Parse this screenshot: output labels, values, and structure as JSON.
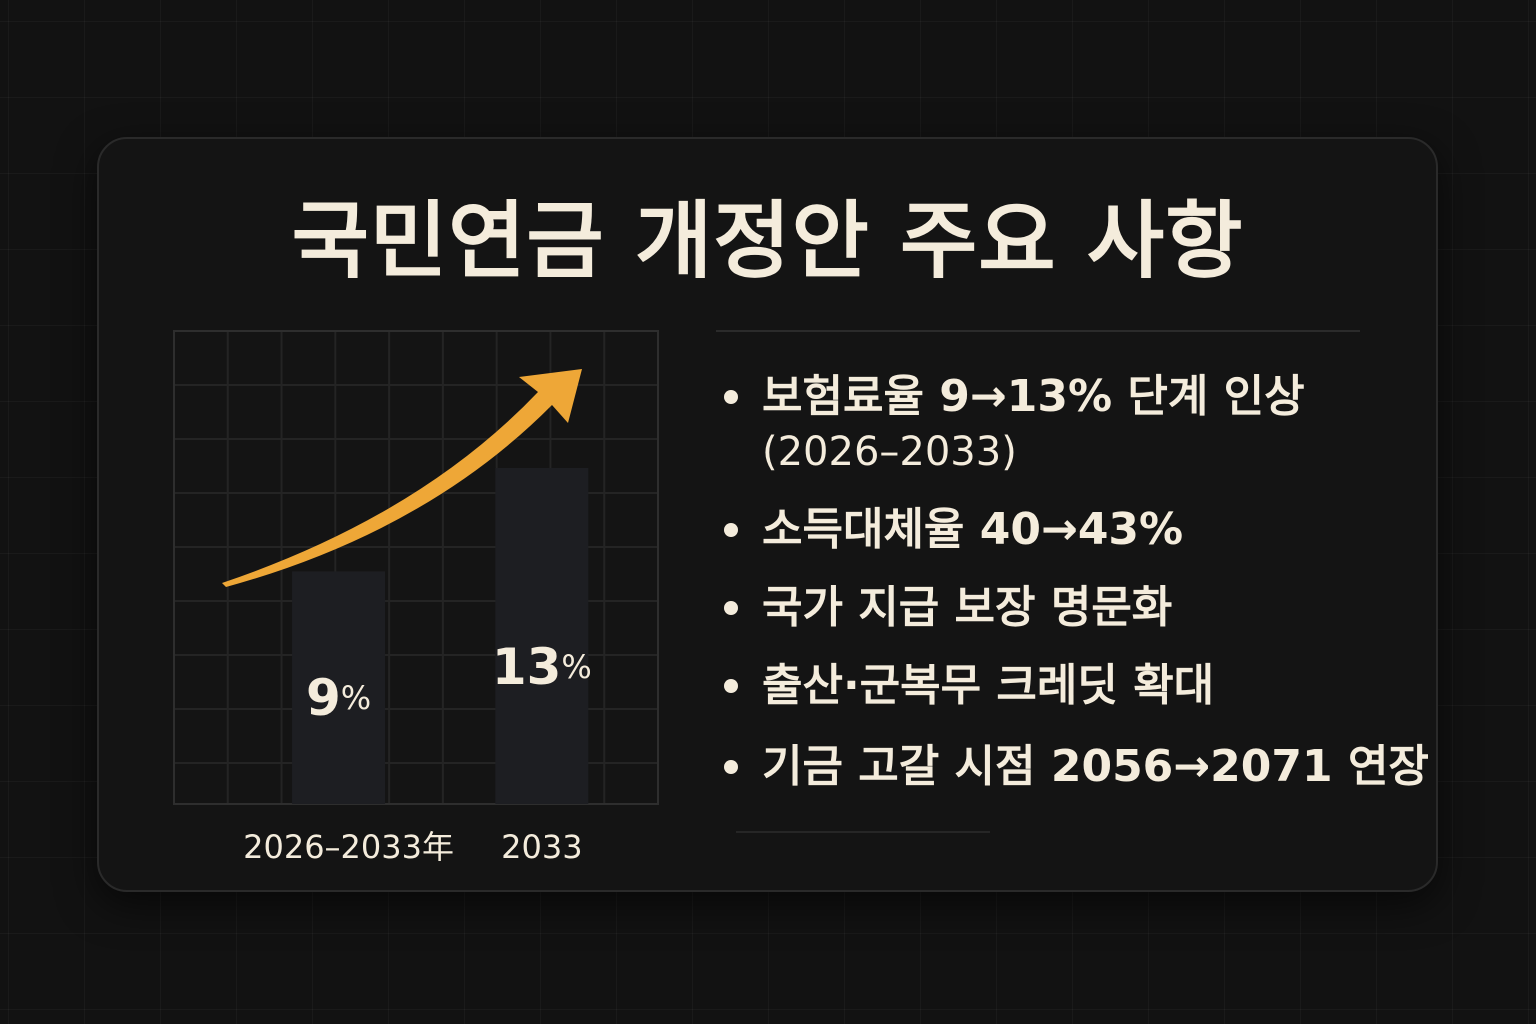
{
  "title": "국민연금 개정안 주요 사항",
  "colors": {
    "background": "#121212",
    "card": "#141414",
    "text": "#f4ecdc",
    "accent": "#eea737",
    "bar": "#1d1e22",
    "grid": "#242424"
  },
  "icons": {
    "bullet": "bullet-dot-icon",
    "trend": "trend-arrow-icon"
  },
  "chart_data": {
    "type": "bar",
    "categories": [
      "2026–2033年",
      "2033"
    ],
    "values": [
      9,
      13
    ],
    "unit": "%",
    "ylim": [
      0,
      18.3
    ],
    "grid": true
  },
  "bullets": [
    {
      "text": "보험료율 9→13% 단계 인상",
      "sub": "(2026–2033)"
    },
    {
      "text": "소득대체율 40→43%"
    },
    {
      "text": "국가 지급 보장 명문화"
    },
    {
      "text": "출산·군복무 크레딧 확대"
    },
    {
      "text": "기금 고갈 시점 2056→2071 연장"
    }
  ]
}
